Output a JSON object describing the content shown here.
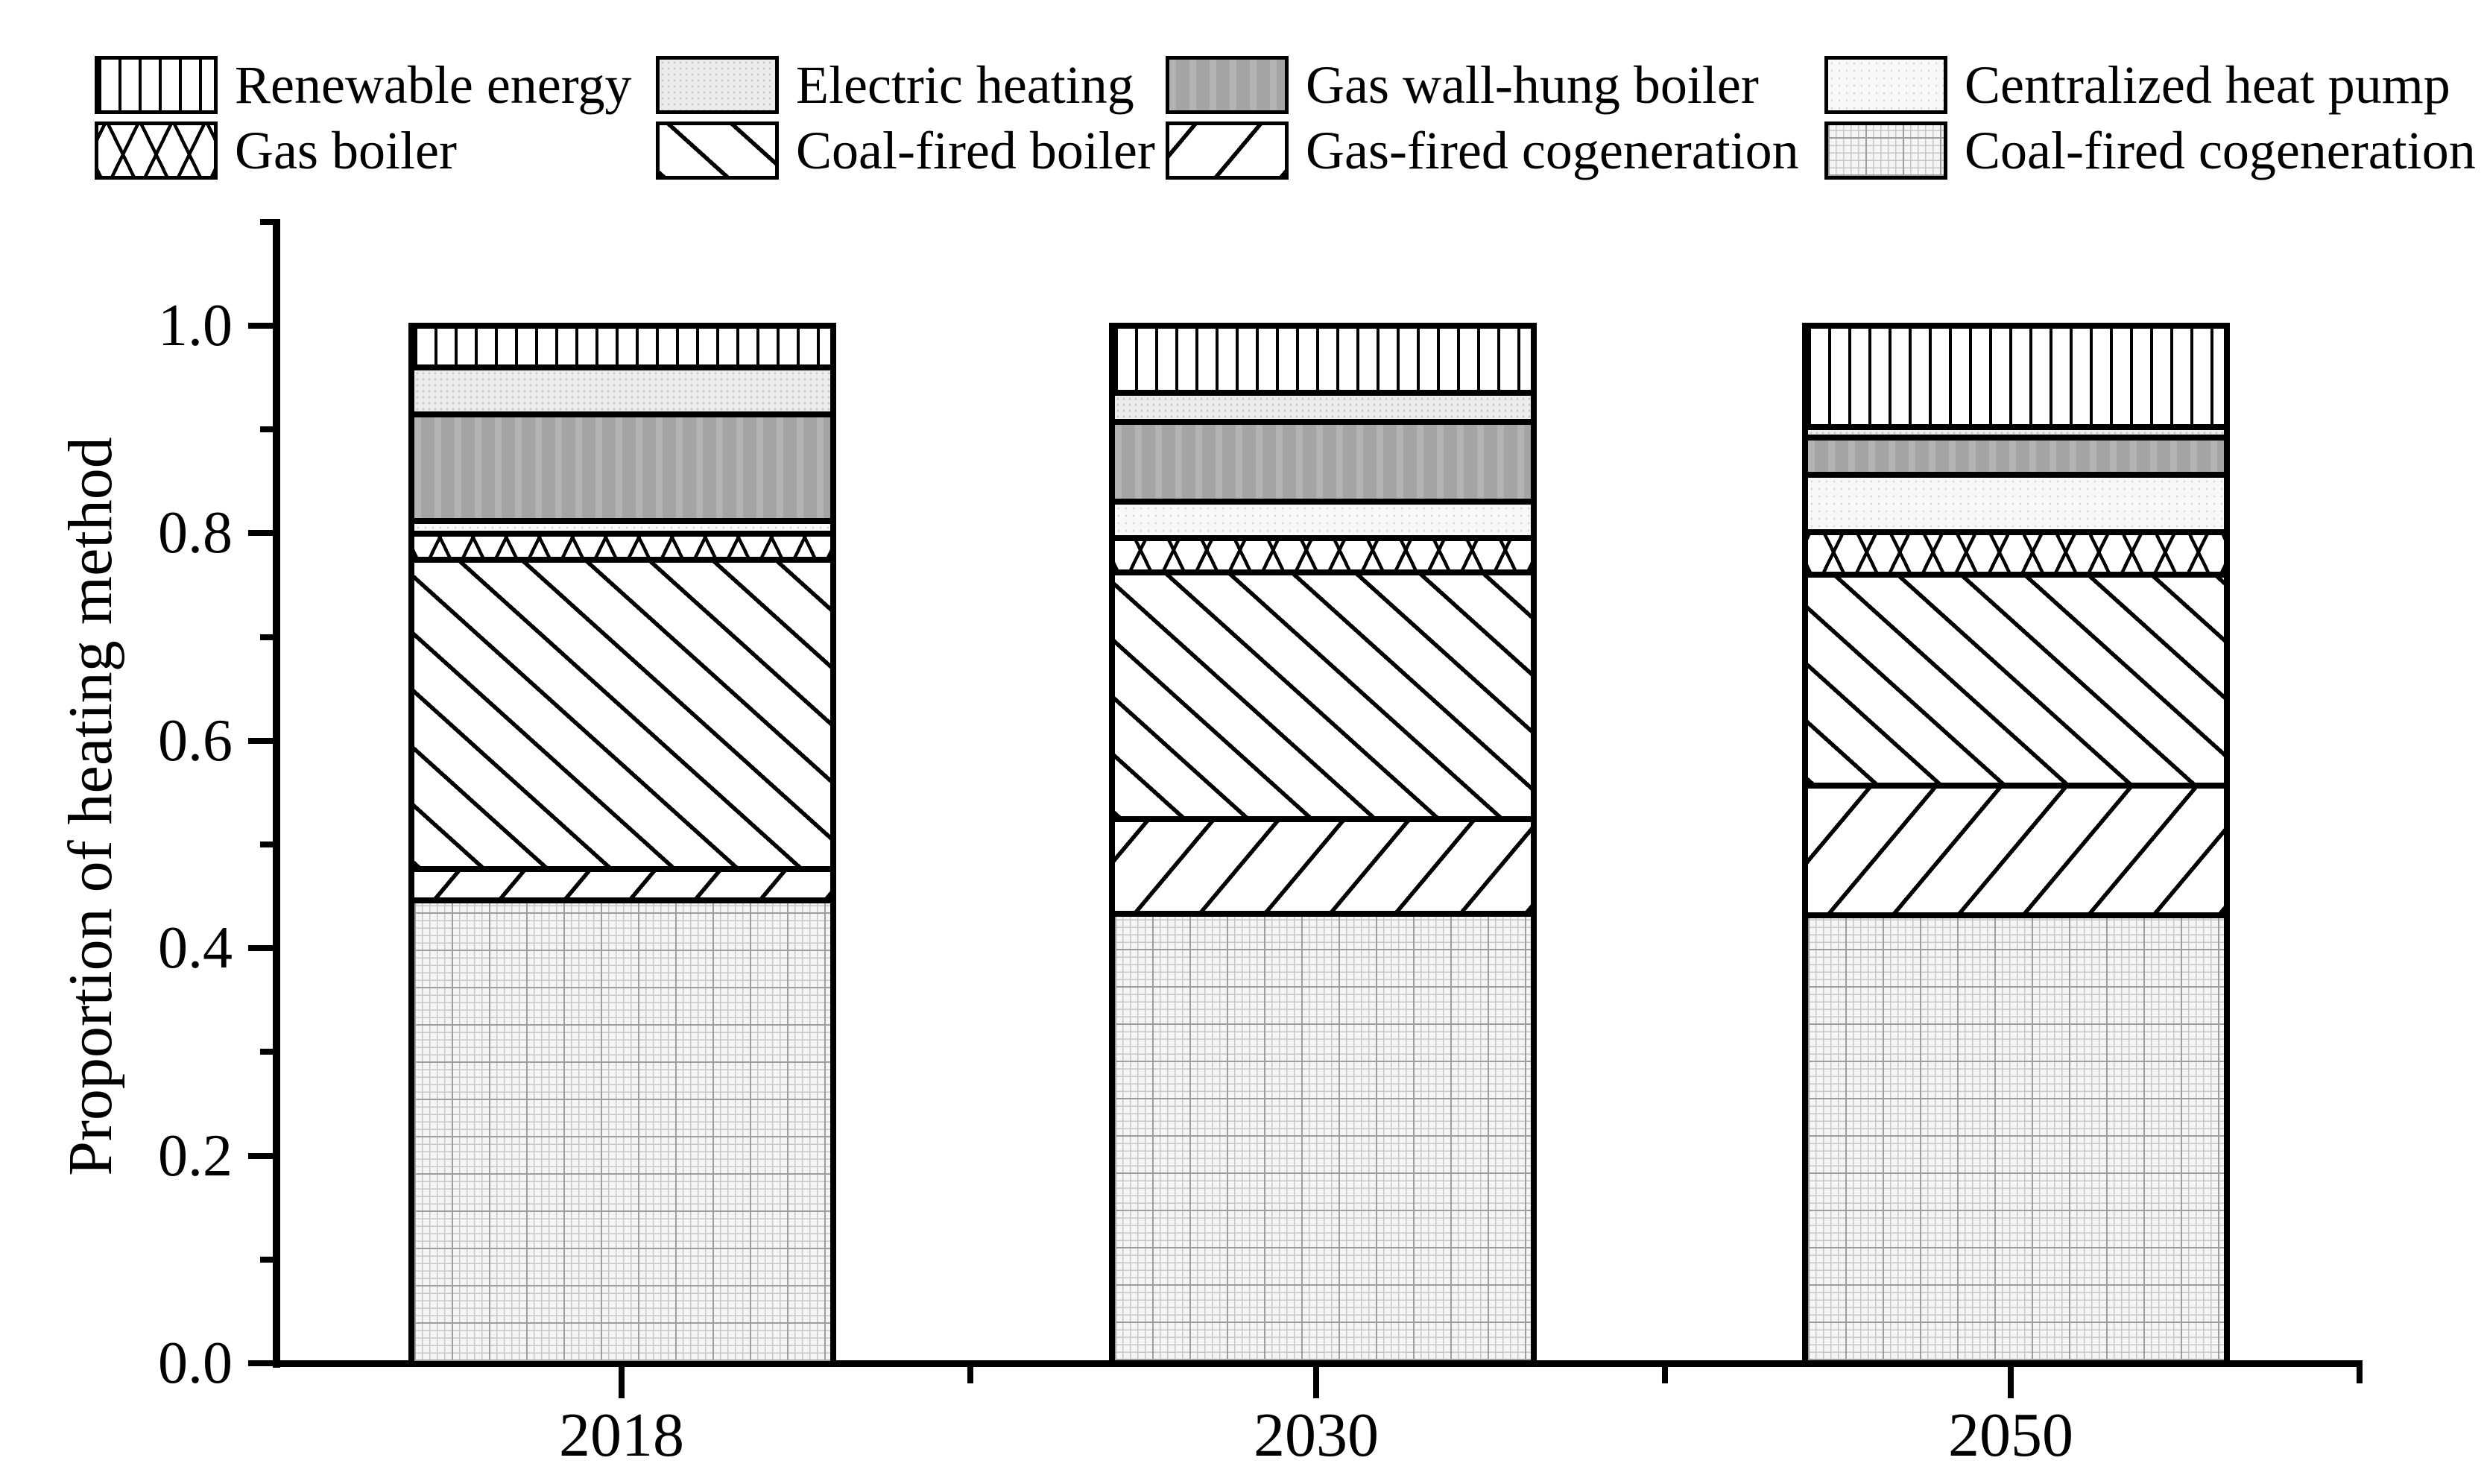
{
  "figure": {
    "background": "#ffffff",
    "ink_color": "#000000"
  },
  "legend": {
    "items": [
      {
        "label": "Renewable energy",
        "pattern": "vertical-stripes",
        "pattern_class": "p-re"
      },
      {
        "label": "Electric heating",
        "pattern": "light-gray-dots",
        "pattern_class": "p-eh"
      },
      {
        "label": "Gas wall-hung boiler",
        "pattern": "solid-medium-gray",
        "pattern_class": "p-gwh"
      },
      {
        "label": "Centralized heat pump",
        "pattern": "sparse-dots-white",
        "pattern_class": "p-chp"
      },
      {
        "label": "Gas boiler",
        "pattern": "diamond-crosshatch",
        "pattern_class": "p-gb"
      },
      {
        "label": "Coal-fired boiler",
        "pattern": "backslash-hatch",
        "pattern_class": "p-cb"
      },
      {
        "label": "Gas-fired cogeneration",
        "pattern": "slash-hatch",
        "pattern_class": "p-gc"
      },
      {
        "label": "Coal-fired cogeneration",
        "pattern": "fine-grid",
        "pattern_class": "p-cc"
      }
    ]
  },
  "y_axis": {
    "label": "Proportion of heating method",
    "tick_labels": [
      "0.0",
      "0.2",
      "0.4",
      "0.6",
      "0.8",
      "1.0"
    ],
    "tick_values": [
      0.0,
      0.2,
      0.4,
      0.6,
      0.8,
      1.0
    ],
    "minor_tick_values": [
      0.1,
      0.3,
      0.5,
      0.7,
      0.9,
      1.1
    ],
    "range": [
      0,
      1.1
    ]
  },
  "x_axis": {
    "tick_labels": [
      "2018",
      "2030",
      "2050"
    ]
  },
  "chart_data": {
    "type": "bar",
    "stacked": true,
    "grid": false,
    "legend_position": "top",
    "title": "",
    "xlabel": "",
    "ylabel": "Proportion of heating method",
    "ylim": [
      0,
      1.1
    ],
    "categories": [
      "2018",
      "2030",
      "2050"
    ],
    "series": [
      {
        "name": "Coal-fired cogeneration",
        "pattern_class": "p-cc",
        "values": [
          0.447,
          0.433,
          0.432
        ]
      },
      {
        "name": "Gas-fired cogeneration",
        "pattern_class": "p-gc",
        "values": [
          0.03,
          0.091,
          0.125
        ]
      },
      {
        "name": "Coal-fired boiler",
        "pattern_class": "p-cb",
        "values": [
          0.298,
          0.238,
          0.203
        ]
      },
      {
        "name": "Gas boiler",
        "pattern_class": "p-gb",
        "values": [
          0.025,
          0.033,
          0.041
        ]
      },
      {
        "name": "Centralized heat pump",
        "pattern_class": "p-chp",
        "values": [
          0.012,
          0.035,
          0.055
        ]
      },
      {
        "name": "Gas wall-hung boiler",
        "pattern_class": "p-gwh",
        "values": [
          0.103,
          0.077,
          0.036
        ]
      },
      {
        "name": "Electric heating",
        "pattern_class": "p-eh",
        "values": [
          0.045,
          0.028,
          0.01
        ]
      },
      {
        "name": "Renewable energy",
        "pattern_class": "p-re",
        "values": [
          0.04,
          0.065,
          0.098
        ]
      }
    ]
  }
}
